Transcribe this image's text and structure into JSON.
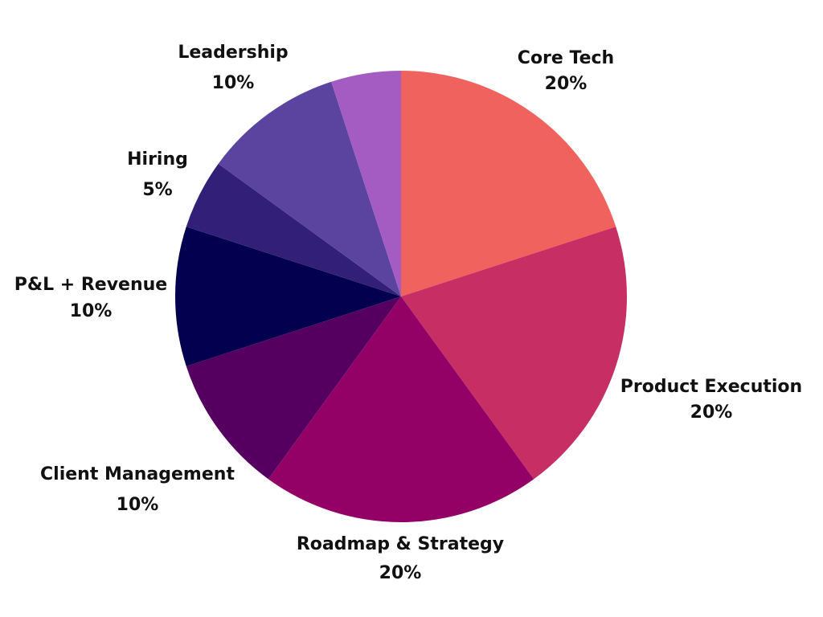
{
  "chart_data": {
    "type": "pie",
    "title": "",
    "start": "top",
    "direction": "clockwise",
    "legend": "none",
    "slices": [
      {
        "name": "Core Tech",
        "value": 20,
        "pct_label": "20%",
        "color": "#F0625D"
      },
      {
        "name": "Product Execution",
        "value": 20,
        "pct_label": "20%",
        "color": "#C72E64"
      },
      {
        "name": "Roadmap & Strategy",
        "value": 20,
        "pct_label": "20%",
        "color": "#930066"
      },
      {
        "name": "Client Management",
        "value": 10,
        "pct_label": "10%",
        "color": "#550060"
      },
      {
        "name": "P&L + Revenue",
        "value": 10,
        "pct_label": "10%",
        "color": "#02004F"
      },
      {
        "name": "Hiring",
        "value": 5,
        "pct_label": "5%",
        "color": "#321F77"
      },
      {
        "name": "Leadership",
        "value": 10,
        "pct_label": "10%",
        "color": "#5B449F"
      },
      {
        "name": "",
        "value": 5,
        "pct_label": "",
        "color": "#A45CC2"
      }
    ]
  }
}
